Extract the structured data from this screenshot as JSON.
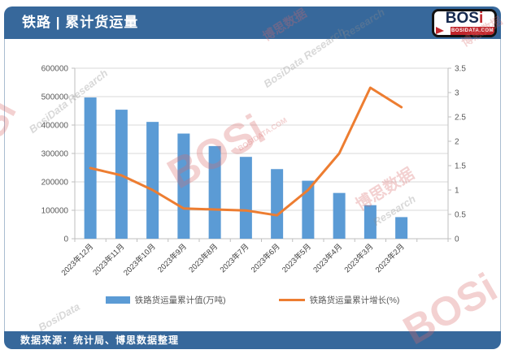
{
  "header": {
    "title": "铁路 | 累计货运量",
    "logo_text": "BOS",
    "logo_text_i": "i",
    "logo_sub": "BOSIDATA.COM"
  },
  "footer": {
    "source": "数据来源：统计局、博思数据整理"
  },
  "colors": {
    "band": "#37689B",
    "bar": "#5B9BD5",
    "line": "#ED7D31",
    "grid": "#D9D9D9",
    "axis": "#BFBFBF",
    "tick_text": "#595959",
    "xlabel_text": "#404040",
    "watermark_red": "#D96A6A",
    "watermark_gray": "#8C8C8C",
    "logo_navy": "#16294E",
    "logo_red": "#C1272D"
  },
  "chart_data": {
    "type": "combo",
    "title": "铁路 | 累计货运量",
    "categories": [
      "2023年12月",
      "2023年11月",
      "2023年10月",
      "2023年9月",
      "2023年8月",
      "2023年7月",
      "2023年6月",
      "2023年5月",
      "2023年4月",
      "2023年3月",
      "2023年2月"
    ],
    "series": [
      {
        "name": "铁路货运量累计值(万吨)",
        "chart_type": "bar",
        "axis": "left",
        "color": "#5B9BD5",
        "values": [
          497000,
          454000,
          411000,
          370000,
          326000,
          288000,
          245000,
          204000,
          161000,
          118000,
          76000
        ]
      },
      {
        "name": "铁路货运量累计增长(%)",
        "chart_type": "line",
        "axis": "right",
        "color": "#ED7D31",
        "values": [
          1.45,
          1.3,
          1.0,
          0.62,
          0.6,
          0.58,
          0.48,
          1.0,
          1.75,
          3.1,
          2.7
        ]
      }
    ],
    "left_axis": {
      "min": 0,
      "max": 600000,
      "step": 100000,
      "ticks": [
        "0",
        "100000",
        "200000",
        "300000",
        "400000",
        "500000",
        "600000"
      ]
    },
    "right_axis": {
      "min": 0,
      "max": 3.5,
      "step": 0.5,
      "ticks": [
        "0",
        "0.5",
        "1",
        "1.5",
        "2",
        "2.5",
        "3",
        "3.5"
      ]
    },
    "empty_trailing_slots": 1,
    "grid": true,
    "legend_position": "bottom",
    "x_label_rotation": -45
  },
  "watermarks": [
    {
      "text": "BOSi",
      "color": "red"
    },
    {
      "text": "BosiData Research",
      "color": "gray"
    },
    {
      "text": "博思数据",
      "color": "red"
    },
    {
      "text": "Research",
      "color": "gray"
    },
    {
      "text": "BOSi",
      "color": "red"
    },
    {
      "text": "BOSIDATA.COM",
      "color": "red"
    },
    {
      "text": "BosiData Research",
      "color": "gray"
    },
    {
      "text": "博思数据",
      "color": "red"
    },
    {
      "text": "Research",
      "color": "gray"
    },
    {
      "text": "BosiData",
      "color": "gray"
    },
    {
      "text": "BOSi",
      "color": "red"
    },
    {
      "text": "博思数据",
      "color": "red"
    }
  ]
}
